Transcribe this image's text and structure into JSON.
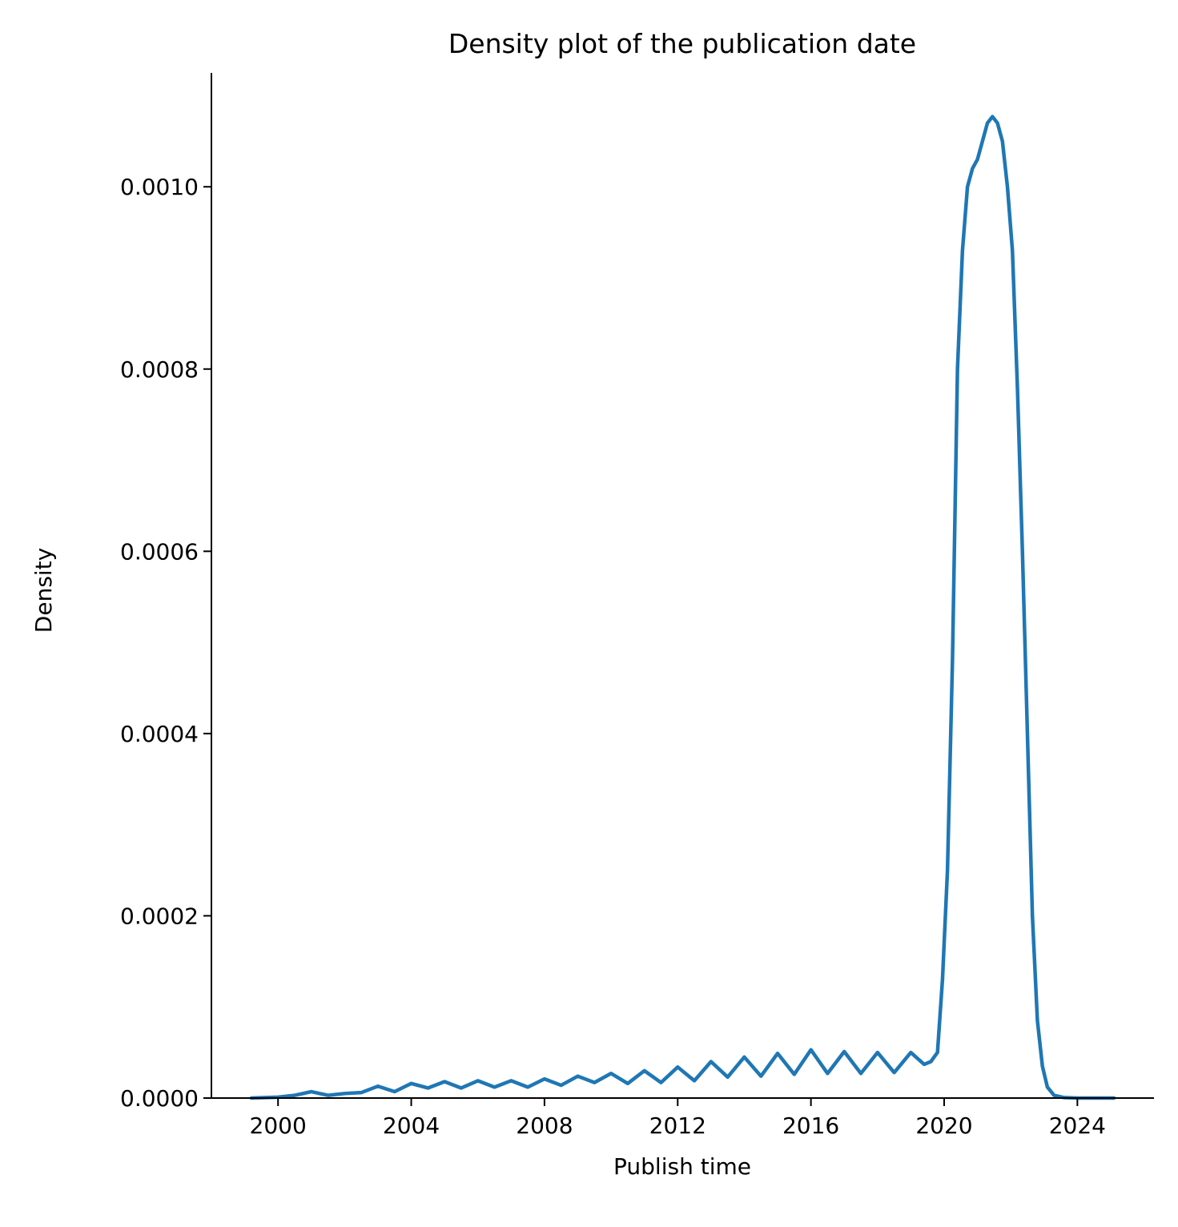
{
  "chart_data": {
    "type": "line",
    "title": "Density plot of the publication date",
    "xlabel": "Publish time",
    "ylabel": "Density",
    "xlim": [
      1998.0,
      2026.3
    ],
    "ylim": [
      0,
      0.001125
    ],
    "x_ticks": [
      2000,
      2004,
      2008,
      2012,
      2016,
      2020,
      2024
    ],
    "x_tick_labels": [
      "2000",
      "2004",
      "2008",
      "2012",
      "2016",
      "2020",
      "2024"
    ],
    "y_ticks": [
      0,
      0.0002,
      0.0004,
      0.0006,
      0.0008,
      0.001
    ],
    "y_tick_labels": [
      "0.0000",
      "0.0002",
      "0.0004",
      "0.0006",
      "0.0008",
      "0.0010"
    ],
    "grid": false,
    "series": [
      {
        "color": "#1f77b4",
        "x": [
          1999.2,
          2000.0,
          2000.5,
          2001.0,
          2001.5,
          2002.0,
          2002.5,
          2003.0,
          2003.5,
          2004.0,
          2004.5,
          2005.0,
          2005.5,
          2006.0,
          2006.5,
          2007.0,
          2007.5,
          2008.0,
          2008.5,
          2009.0,
          2009.5,
          2010.0,
          2010.5,
          2011.0,
          2011.5,
          2012.0,
          2012.5,
          2013.0,
          2013.5,
          2014.0,
          2014.5,
          2015.0,
          2015.5,
          2016.0,
          2016.5,
          2017.0,
          2017.5,
          2018.0,
          2018.5,
          2019.0,
          2019.4,
          2019.6,
          2019.8,
          2019.95,
          2020.1,
          2020.25,
          2020.4,
          2020.55,
          2020.7,
          2020.85,
          2021.0,
          2021.15,
          2021.3,
          2021.45,
          2021.6,
          2021.75,
          2021.9,
          2022.05,
          2022.2,
          2022.35,
          2022.5,
          2022.65,
          2022.8,
          2022.95,
          2023.1,
          2023.3,
          2023.6,
          2024.0,
          2024.5,
          2025.1
        ],
        "y": [
          0.0,
          1e-06,
          3e-06,
          7e-06,
          3e-06,
          5e-06,
          6e-06,
          1.3e-05,
          7e-06,
          1.6e-05,
          1.1e-05,
          1.8e-05,
          1.1e-05,
          1.9e-05,
          1.2e-05,
          1.9e-05,
          1.2e-05,
          2.1e-05,
          1.4e-05,
          2.4e-05,
          1.7e-05,
          2.7e-05,
          1.6e-05,
          3e-05,
          1.7e-05,
          3.4e-05,
          1.9e-05,
          4e-05,
          2.3e-05,
          4.5e-05,
          2.4e-05,
          4.9e-05,
          2.6e-05,
          5.3e-05,
          2.7e-05,
          5.1e-05,
          2.7e-05,
          5e-05,
          2.8e-05,
          5e-05,
          3.7e-05,
          4e-05,
          5e-05,
          0.00013,
          0.00025,
          0.00048,
          0.0008,
          0.00093,
          0.001,
          0.00102,
          0.00103,
          0.00105,
          0.00107,
          0.001077,
          0.00107,
          0.00105,
          0.001,
          0.00093,
          0.00078,
          0.0006,
          0.0004,
          0.0002,
          8.5e-05,
          3.5e-05,
          1.2e-05,
          3e-06,
          5e-07,
          0.0,
          0.0,
          0.0
        ]
      }
    ]
  }
}
